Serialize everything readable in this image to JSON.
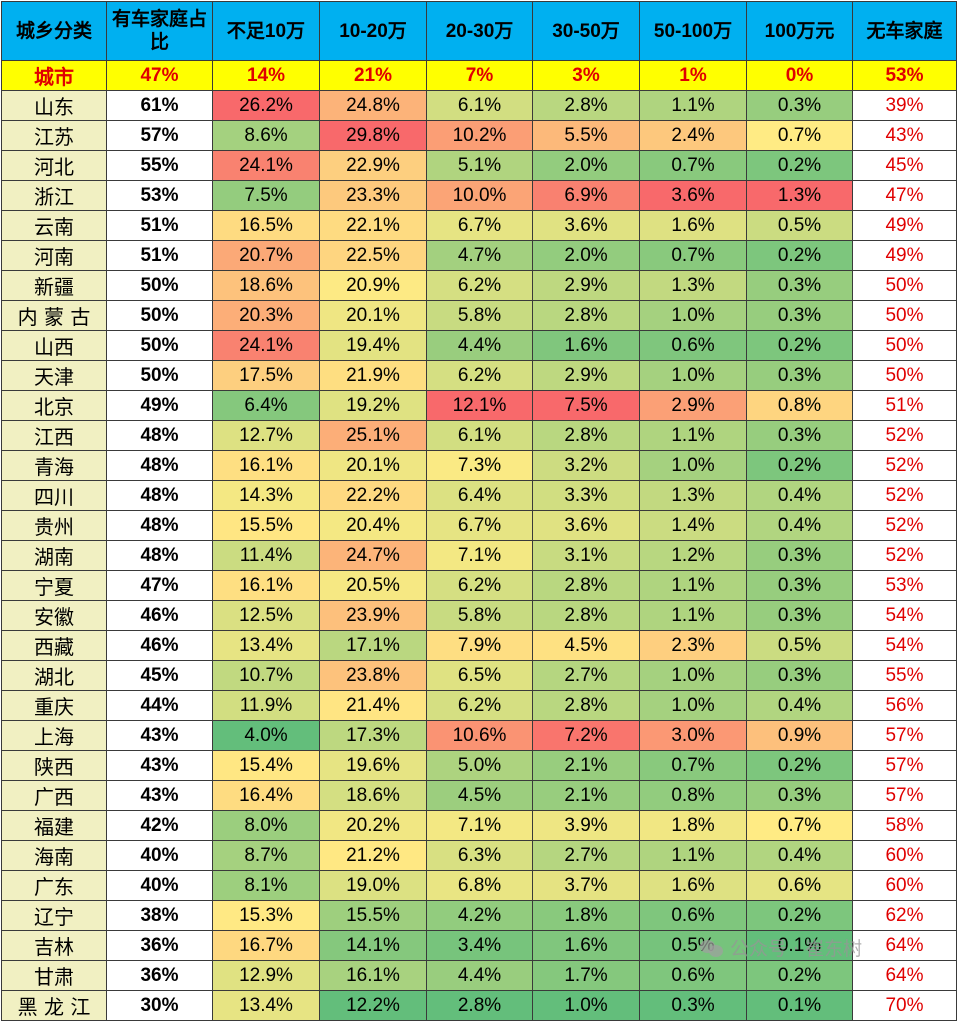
{
  "chart_data": {
    "type": "table",
    "columns": [
      "城乡分类",
      "有车家庭占比",
      "不足10万",
      "10-20万",
      "20-30万",
      "30-50万",
      "50-100万",
      "100万元",
      "无车家庭"
    ],
    "city_row": {
      "region": "城市",
      "share": "47%",
      "values": [
        "14%",
        "21%",
        "7%",
        "3%",
        "1%",
        "0%"
      ],
      "no_car": "53%"
    },
    "rows": [
      {
        "region": "山东",
        "share": "61%",
        "values": [
          26.2,
          24.8,
          6.1,
          2.8,
          1.1,
          0.3
        ],
        "no_car": "39%"
      },
      {
        "region": "江苏",
        "share": "57%",
        "values": [
          8.6,
          29.8,
          10.2,
          5.5,
          2.4,
          0.7
        ],
        "no_car": "43%"
      },
      {
        "region": "河北",
        "share": "55%",
        "values": [
          24.1,
          22.9,
          5.1,
          2.0,
          0.7,
          0.2
        ],
        "no_car": "45%"
      },
      {
        "region": "浙江",
        "share": "53%",
        "values": [
          7.5,
          23.3,
          10.0,
          6.9,
          3.6,
          1.3
        ],
        "no_car": "47%"
      },
      {
        "region": "云南",
        "share": "51%",
        "values": [
          16.5,
          22.1,
          6.7,
          3.6,
          1.6,
          0.5
        ],
        "no_car": "49%"
      },
      {
        "region": "河南",
        "share": "51%",
        "values": [
          20.7,
          22.5,
          4.7,
          2.0,
          0.7,
          0.2
        ],
        "no_car": "49%"
      },
      {
        "region": "新疆",
        "share": "50%",
        "values": [
          18.6,
          20.9,
          6.2,
          2.9,
          1.3,
          0.3
        ],
        "no_car": "50%"
      },
      {
        "region": "内 蒙 古",
        "share": "50%",
        "values": [
          20.3,
          20.1,
          5.8,
          2.8,
          1.0,
          0.3
        ],
        "no_car": "50%"
      },
      {
        "region": "山西",
        "share": "50%",
        "values": [
          24.1,
          19.4,
          4.4,
          1.6,
          0.6,
          0.2
        ],
        "no_car": "50%"
      },
      {
        "region": "天津",
        "share": "50%",
        "values": [
          17.5,
          21.9,
          6.2,
          2.9,
          1.0,
          0.3
        ],
        "no_car": "50%"
      },
      {
        "region": "北京",
        "share": "49%",
        "values": [
          6.4,
          19.2,
          12.1,
          7.5,
          2.9,
          0.8
        ],
        "no_car": "51%"
      },
      {
        "region": "江西",
        "share": "48%",
        "values": [
          12.7,
          25.1,
          6.1,
          2.8,
          1.1,
          0.3
        ],
        "no_car": "52%"
      },
      {
        "region": "青海",
        "share": "48%",
        "values": [
          16.1,
          20.1,
          7.3,
          3.2,
          1.0,
          0.2
        ],
        "no_car": "52%"
      },
      {
        "region": "四川",
        "share": "48%",
        "values": [
          14.3,
          22.2,
          6.4,
          3.3,
          1.3,
          0.4
        ],
        "no_car": "52%"
      },
      {
        "region": "贵州",
        "share": "48%",
        "values": [
          15.5,
          20.4,
          6.7,
          3.6,
          1.4,
          0.4
        ],
        "no_car": "52%"
      },
      {
        "region": "湖南",
        "share": "48%",
        "values": [
          11.4,
          24.7,
          7.1,
          3.1,
          1.2,
          0.3
        ],
        "no_car": "52%"
      },
      {
        "region": "宁夏",
        "share": "47%",
        "values": [
          16.1,
          20.5,
          6.2,
          2.8,
          1.1,
          0.3
        ],
        "no_car": "53%"
      },
      {
        "region": "安徽",
        "share": "46%",
        "values": [
          12.5,
          23.9,
          5.8,
          2.8,
          1.1,
          0.3
        ],
        "no_car": "54%"
      },
      {
        "region": "西藏",
        "share": "46%",
        "values": [
          13.4,
          17.1,
          7.9,
          4.5,
          2.3,
          0.5
        ],
        "no_car": "54%"
      },
      {
        "region": "湖北",
        "share": "45%",
        "values": [
          10.7,
          23.8,
          6.5,
          2.7,
          1.0,
          0.3
        ],
        "no_car": "55%"
      },
      {
        "region": "重庆",
        "share": "44%",
        "values": [
          11.9,
          21.4,
          6.2,
          2.8,
          1.0,
          0.4
        ],
        "no_car": "56%"
      },
      {
        "region": "上海",
        "share": "43%",
        "values": [
          4.0,
          17.3,
          10.6,
          7.2,
          3.0,
          0.9
        ],
        "no_car": "57%"
      },
      {
        "region": "陕西",
        "share": "43%",
        "values": [
          15.4,
          19.6,
          5.0,
          2.1,
          0.7,
          0.2
        ],
        "no_car": "57%"
      },
      {
        "region": "广西",
        "share": "43%",
        "values": [
          16.4,
          18.6,
          4.5,
          2.1,
          0.8,
          0.3
        ],
        "no_car": "57%"
      },
      {
        "region": "福建",
        "share": "42%",
        "values": [
          8.0,
          20.2,
          7.1,
          3.9,
          1.8,
          0.7
        ],
        "no_car": "58%"
      },
      {
        "region": "海南",
        "share": "40%",
        "values": [
          8.7,
          21.2,
          6.3,
          2.7,
          1.1,
          0.4
        ],
        "no_car": "60%"
      },
      {
        "region": "广东",
        "share": "40%",
        "values": [
          8.1,
          19.0,
          6.8,
          3.7,
          1.6,
          0.6
        ],
        "no_car": "60%"
      },
      {
        "region": "辽宁",
        "share": "38%",
        "values": [
          15.3,
          15.5,
          4.2,
          1.8,
          0.6,
          0.2
        ],
        "no_car": "62%"
      },
      {
        "region": "吉林",
        "share": "36%",
        "values": [
          16.7,
          14.1,
          3.4,
          1.6,
          0.5,
          0.1
        ],
        "no_car": "64%"
      },
      {
        "region": "甘肃",
        "share": "36%",
        "values": [
          12.9,
          16.1,
          4.4,
          1.7,
          0.6,
          0.2
        ],
        "no_car": "64%"
      },
      {
        "region": "黑 龙 江",
        "share": "30%",
        "values": [
          13.4,
          12.2,
          2.8,
          1.0,
          0.3,
          0.1
        ],
        "no_car": "70%"
      }
    ],
    "value_unit": "%",
    "color_scale": {
      "low": "#63be7b",
      "mid": "#ffeb84",
      "high": "#f8696b",
      "method": "per-column"
    }
  },
  "watermark": {
    "text": "公众号 · 崔东树",
    "icon": "wechat-icon"
  },
  "colors": {
    "header_bg": "#00b0f0",
    "region_bg": "#f1f0c2",
    "city_row_bg": "#ffff00",
    "accent_red": "#e00000"
  }
}
